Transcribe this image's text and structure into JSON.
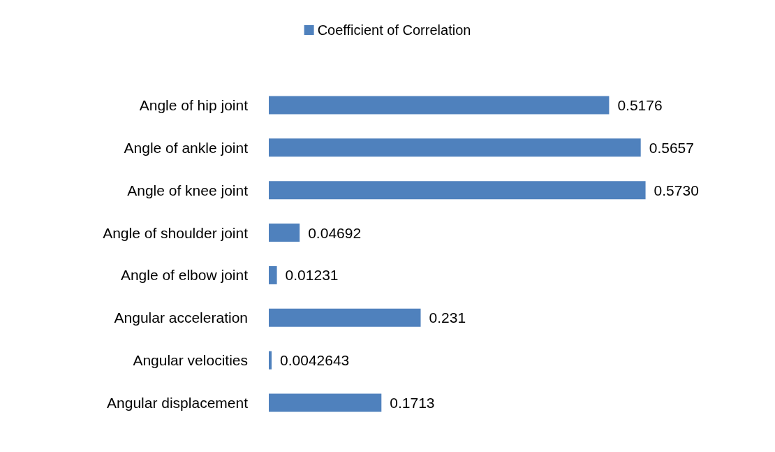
{
  "chart_data": {
    "type": "bar",
    "orientation": "horizontal",
    "categories": [
      "Angle of hip joint",
      "Angle of ankle joint",
      "Angle of knee joint",
      "Angle of shoulder joint",
      "Angle of elbow joint",
      "Angular acceleration",
      "Angular velocities",
      "Angular displacement"
    ],
    "series": [
      {
        "name": "Coefficient of Correlation",
        "color": "#4f81bd",
        "values": [
          0.5176,
          0.5657,
          0.573,
          0.04692,
          0.01231,
          0.231,
          0.0042643,
          0.1713
        ],
        "value_labels": [
          "0.5176",
          "0.5657",
          "0.5730",
          "0.04692",
          "0.01231",
          "0.231",
          "0.0042643",
          "0.1713"
        ]
      }
    ],
    "legend": "top"
  }
}
